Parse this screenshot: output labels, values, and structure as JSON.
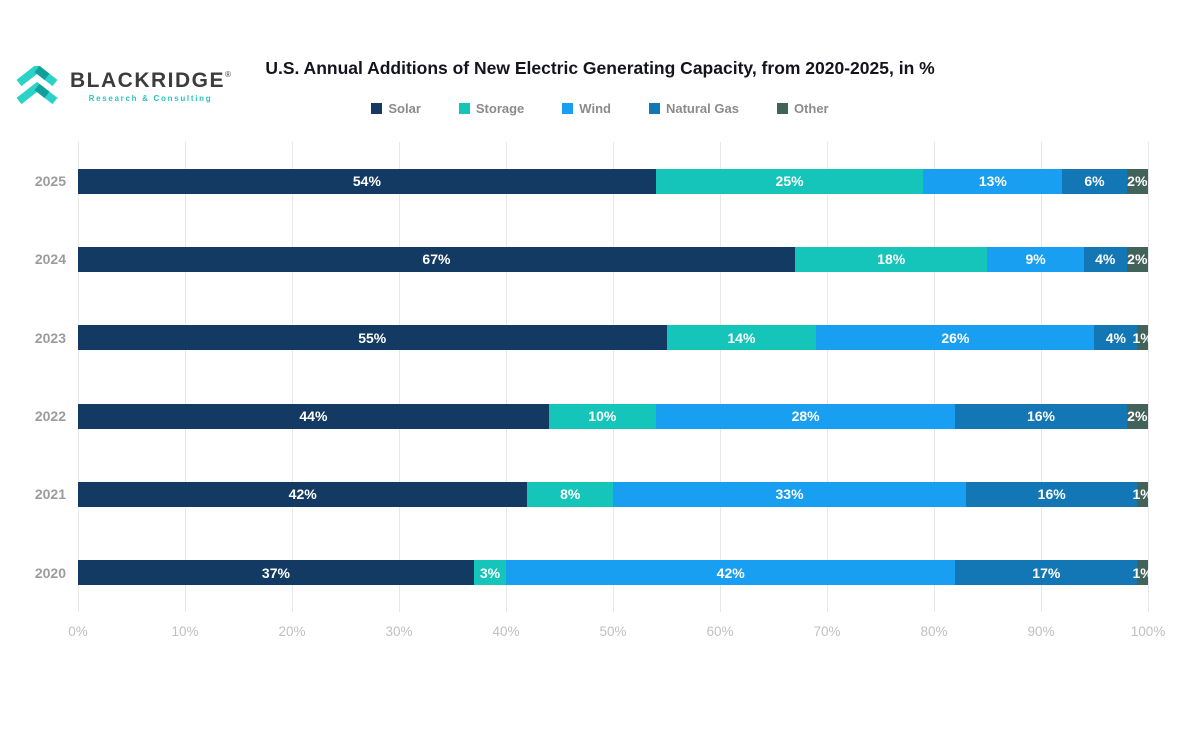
{
  "brand": {
    "name": "BLACKRIDGE",
    "registered": "®",
    "tagline": "Research & Consulting",
    "accent_color": "#2bd2c8",
    "accent_dark": "#119f9b",
    "text_color": "#3c3c3c"
  },
  "chart_data": {
    "type": "bar",
    "orientation": "horizontal-stacked",
    "title": "U.S. Annual Additions of New Electric Generating Capacity, from 2020-2025, in %",
    "categories": [
      "2025",
      "2024",
      "2023",
      "2022",
      "2021",
      "2020"
    ],
    "series": [
      {
        "name": "Solar",
        "color": "#123a63",
        "values": [
          54,
          67,
          55,
          44,
          42,
          37
        ]
      },
      {
        "name": "Storage",
        "color": "#16c5ba",
        "values": [
          25,
          18,
          14,
          10,
          8,
          3
        ]
      },
      {
        "name": "Wind",
        "color": "#189ff2",
        "values": [
          13,
          9,
          26,
          28,
          33,
          42
        ]
      },
      {
        "name": "Natural Gas",
        "color": "#1377b6",
        "values": [
          6,
          4,
          4,
          16,
          16,
          17
        ]
      },
      {
        "name": "Other",
        "color": "#42635a",
        "values": [
          2,
          2,
          1,
          2,
          1,
          1
        ]
      }
    ],
    "x_ticks": [
      "0%",
      "10%",
      "20%",
      "30%",
      "40%",
      "50%",
      "60%",
      "70%",
      "80%",
      "90%",
      "100%"
    ],
    "xlim": [
      0,
      100
    ],
    "xlabel": "",
    "ylabel": "",
    "grid": true,
    "legend_position": "top",
    "value_label_format": "{v}%",
    "value_label_color": "#ffffff",
    "gridline_color": "#e8e8e8"
  }
}
